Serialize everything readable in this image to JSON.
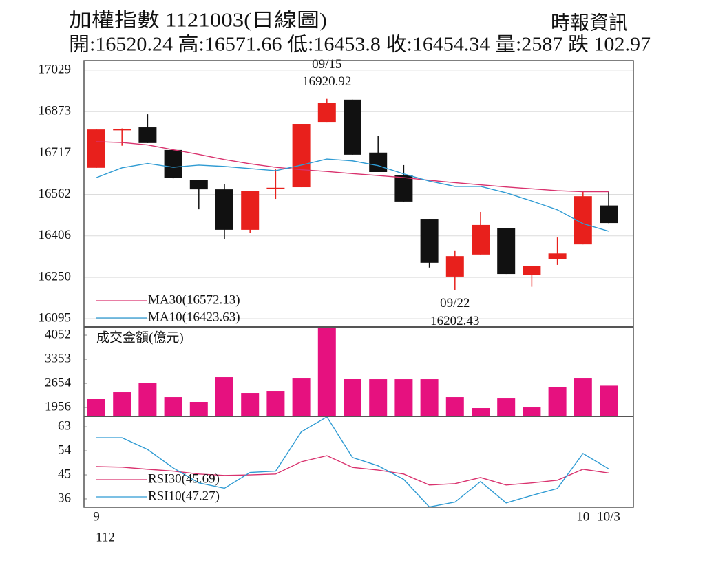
{
  "header": {
    "title": "加權指數 1121003(日線圖)",
    "source": "時報資訊",
    "summary": "開:16520.24 高:16571.66 低:16453.8 收:16454.34 量:2587 跌 102.97"
  },
  "chart_data": [
    {
      "type": "candlestick",
      "categories": [
        "9",
        null,
        null,
        null,
        null,
        null,
        null,
        null,
        null,
        null,
        null,
        null,
        null,
        null,
        null,
        null,
        null,
        null,
        null,
        "10",
        "10/3"
      ],
      "year_label": "112",
      "open": [
        16662,
        16803,
        16814,
        16729,
        16615,
        16581,
        16429,
        16583,
        16589,
        16832,
        16918,
        16719,
        16633,
        16470,
        16253,
        16336,
        16434,
        16258,
        16320,
        16374,
        16520.24
      ],
      "high": [
        16806,
        16810,
        16863,
        16729,
        16615,
        16602,
        16576,
        16656,
        16827,
        16920.92,
        16918,
        16781,
        16672,
        16470,
        16349,
        16496,
        16434,
        16294,
        16400,
        16574,
        16571.66
      ],
      "low": [
        16662,
        16745,
        16755,
        16622,
        16506,
        16393,
        16418,
        16545,
        16589,
        16832,
        16711,
        16646,
        16535,
        16287,
        16202.43,
        16336,
        16263,
        16215,
        16297,
        16374,
        16453.8
      ],
      "close": [
        16806,
        16808,
        16755,
        16625,
        16581,
        16429,
        16576,
        16587,
        16827,
        16905,
        16711,
        16646,
        16535,
        16305,
        16330,
        16447,
        16263,
        16294,
        16340,
        16555,
        16454.34
      ],
      "up_color": "#e8201c",
      "down_color": "#111111",
      "ylim": [
        16064,
        17065
      ],
      "yticks": [
        17029,
        16873,
        16717,
        16562,
        16406,
        16250,
        16095
      ],
      "grid": true,
      "series": [
        {
          "name": "MA30(16572.13)",
          "color": "#d9326e",
          "values": [
            16760,
            16757,
            16748,
            16730,
            16712,
            16693,
            16677,
            16664,
            16655,
            16648,
            16640,
            16633,
            16625,
            16615,
            16606,
            16598,
            16590,
            16583,
            16576,
            16572,
            16572.13
          ]
        },
        {
          "name": "MA10(16423.63)",
          "color": "#2f9bd3",
          "values": [
            16625,
            16662,
            16678,
            16664,
            16672,
            16667,
            16659,
            16651,
            16672,
            16695,
            16688,
            16670,
            16639,
            16612,
            16592,
            16592,
            16568,
            16537,
            16504,
            16452,
            16423.63
          ]
        }
      ],
      "annotations": [
        {
          "label": "09/15",
          "value": 16920.92
        },
        {
          "label": "09/22",
          "value": 16202.43
        }
      ]
    },
    {
      "type": "bar",
      "title": "成交金額(億元)",
      "color": "#e6117f",
      "values": [
        2196,
        2395,
        2675,
        2255,
        2116,
        2834,
        2375,
        2435,
        2814,
        4290,
        2794,
        2774,
        2774,
        2774,
        2255,
        1936,
        2215,
        1956,
        2555,
        2814,
        2587
      ],
      "ylim": [
        1697,
        4292
      ],
      "yticks": [
        4052,
        3353,
        2654,
        1956
      ]
    },
    {
      "type": "line",
      "series": [
        {
          "name": "RSI30(45.69)",
          "color": "#d9326e",
          "values": [
            48.1,
            47.9,
            47.1,
            46.4,
            45.3,
            44.8,
            45,
            45.3,
            49.9,
            52.2,
            47.8,
            46.8,
            45.3,
            41.2,
            41.7,
            44,
            41.2,
            42,
            43,
            47.1,
            45.69
          ]
        },
        {
          "name": "RSI10(47.27)",
          "color": "#2f9bd3",
          "values": [
            58.9,
            58.9,
            54.5,
            47.6,
            42,
            40,
            45.9,
            46.4,
            61.1,
            66.7,
            51.5,
            48.4,
            43.3,
            33,
            34.8,
            42.5,
            34.5,
            37.3,
            39.9,
            53,
            47.27
          ]
        }
      ],
      "ylim": [
        32.9,
        66.9
      ],
      "yticks": [
        63,
        54,
        45,
        36
      ]
    }
  ]
}
